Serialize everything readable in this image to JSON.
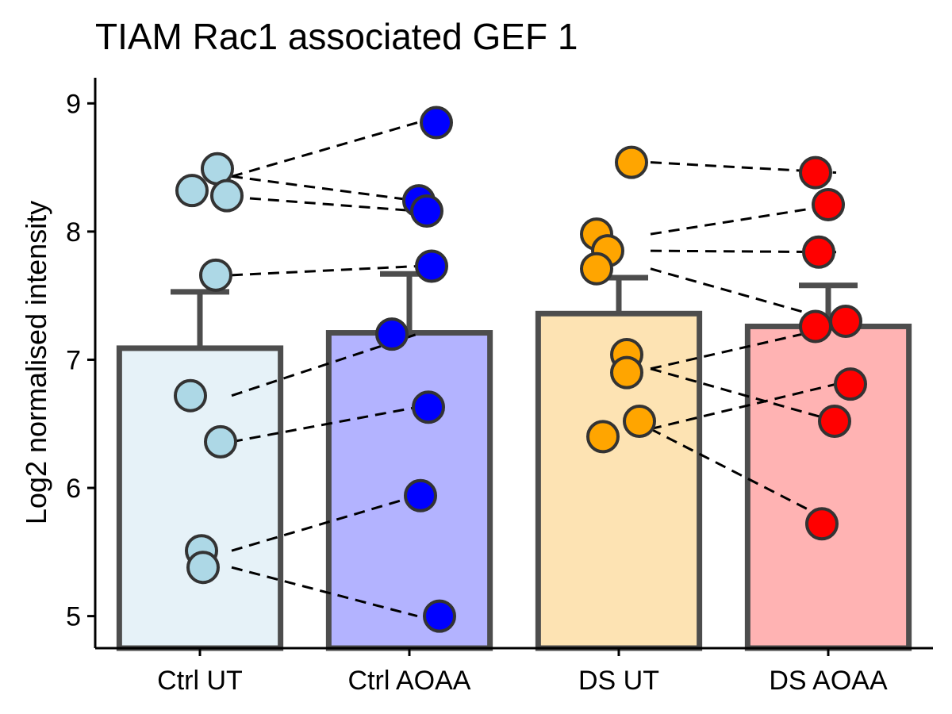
{
  "chart_data": {
    "type": "bar",
    "title": "TIAM Rac1 associated GEF 1",
    "xlabel": "",
    "ylabel": "Log2 normalised intensity",
    "ylim": [
      4.75,
      9.2
    ],
    "yticks": [
      5,
      6,
      7,
      8,
      9
    ],
    "categories": [
      "Ctrl UT",
      "Ctrl AOAA",
      "DS UT",
      "DS AOAA"
    ],
    "bar_values": [
      7.09,
      7.21,
      7.36,
      7.26
    ],
    "error_upper": [
      7.53,
      7.67,
      7.64,
      7.58
    ],
    "bar_fill_colors": [
      "#e6f2f8",
      "#b3b3ff",
      "#fde3b3",
      "#ffb3b3"
    ],
    "point_colors": [
      "#add8e6",
      "#0000ff",
      "#ffa500",
      "#ff0000"
    ],
    "bar_outline_color": "#4d4d4d",
    "points": [
      [
        8.49,
        8.32,
        8.28,
        7.66,
        6.72,
        6.36,
        5.51,
        5.38
      ],
      [
        8.85,
        8.24,
        8.16,
        7.73,
        7.2,
        6.63,
        5.94,
        5.0
      ],
      [
        8.54,
        7.98,
        7.85,
        7.71,
        7.04,
        6.9,
        6.52,
        6.4
      ],
      [
        8.46,
        8.21,
        7.84,
        7.3,
        7.26,
        6.81,
        6.52,
        5.72
      ]
    ],
    "paired_lines": [
      {
        "from": [
          0,
          8.43
        ],
        "to": [
          1,
          8.85
        ]
      },
      {
        "from": [
          0,
          8.43
        ],
        "to": [
          1,
          8.24
        ]
      },
      {
        "from": [
          0,
          8.27
        ],
        "to": [
          1,
          8.16
        ]
      },
      {
        "from": [
          0,
          7.66
        ],
        "to": [
          1,
          7.73
        ]
      },
      {
        "from": [
          0,
          6.72
        ],
        "to": [
          1,
          7.2
        ]
      },
      {
        "from": [
          0,
          6.36
        ],
        "to": [
          1,
          6.63
        ]
      },
      {
        "from": [
          0,
          5.51
        ],
        "to": [
          1,
          5.94
        ]
      },
      {
        "from": [
          0,
          5.38
        ],
        "to": [
          1,
          5.0
        ]
      },
      {
        "from": [
          2,
          8.54
        ],
        "to": [
          3,
          8.46
        ]
      },
      {
        "from": [
          2,
          7.98
        ],
        "to": [
          3,
          8.21
        ]
      },
      {
        "from": [
          2,
          7.85
        ],
        "to": [
          3,
          7.84
        ]
      },
      {
        "from": [
          2,
          7.71
        ],
        "to": [
          3,
          7.3
        ]
      },
      {
        "from": [
          2,
          6.93
        ],
        "to": [
          3,
          7.26
        ]
      },
      {
        "from": [
          2,
          6.93
        ],
        "to": [
          3,
          6.52
        ]
      },
      {
        "from": [
          2,
          6.46
        ],
        "to": [
          3,
          6.81
        ]
      },
      {
        "from": [
          2,
          6.46
        ],
        "to": [
          3,
          5.72
        ]
      }
    ]
  }
}
